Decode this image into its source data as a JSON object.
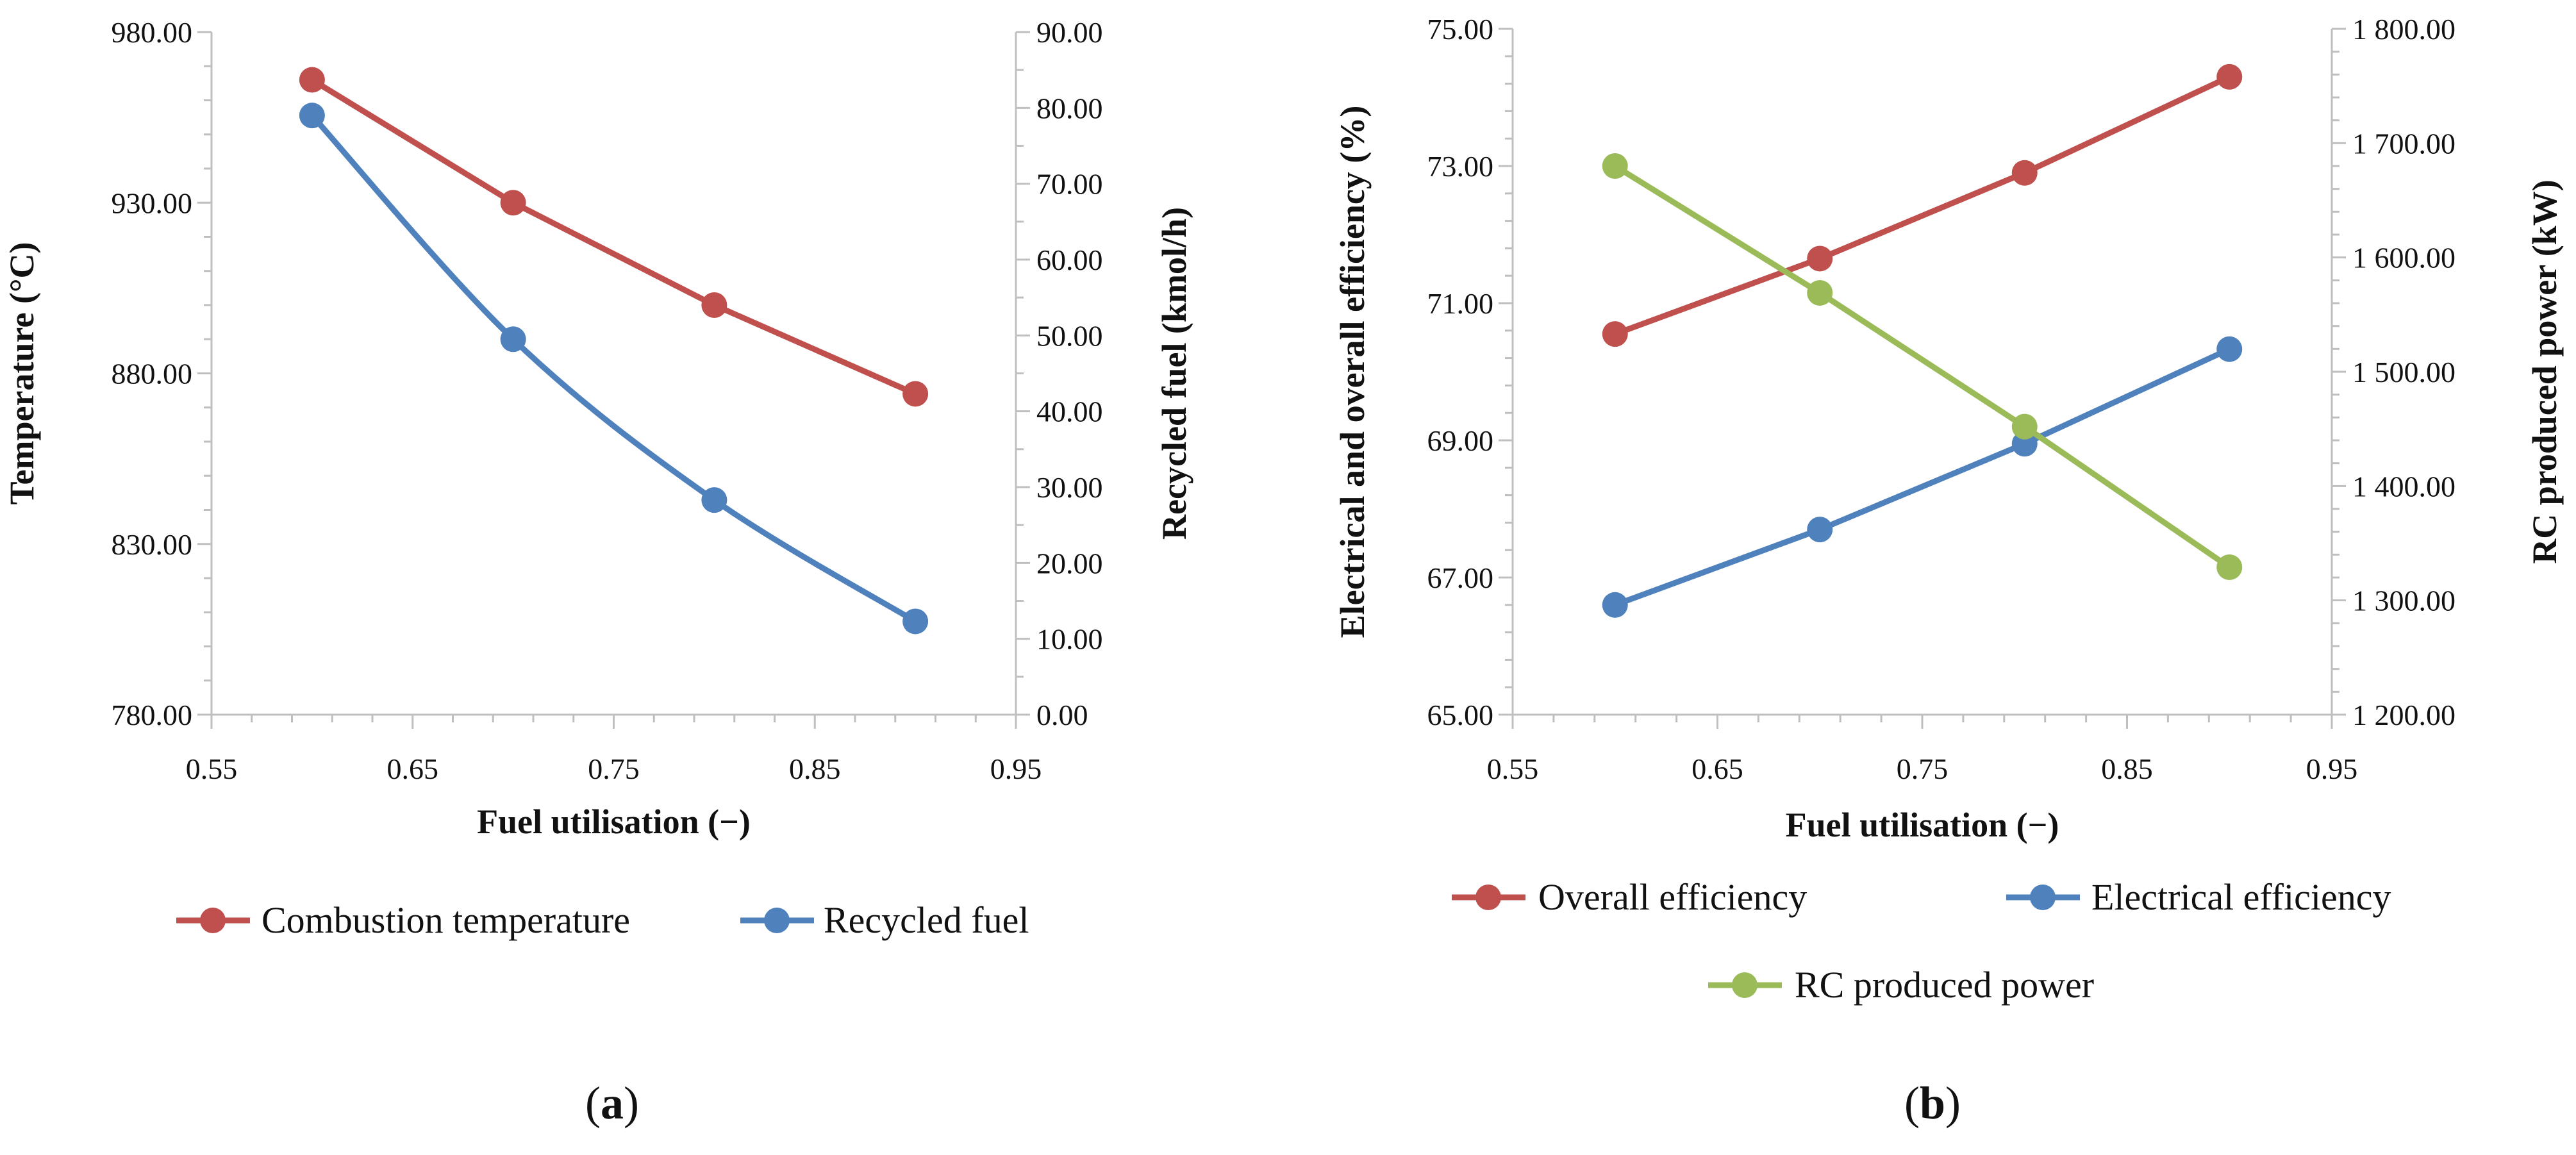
{
  "chart_data": [
    {
      "type": "line",
      "panel_label": "(a)",
      "label_parts": [
        "(",
        "a",
        ")"
      ],
      "xlabel": "Fuel utilisation (−)",
      "ylabel_left": "Temperature (°C)",
      "ylabel_right": "Recycled fuel (kmol/h)",
      "xlim": [
        0.55,
        0.95
      ],
      "x_ticks": [
        "0.55",
        "0.65",
        "0.75",
        "0.85",
        "0.95"
      ],
      "ylim_left": [
        780,
        980
      ],
      "y_ticks_left": [
        "780.00",
        "830.00",
        "880.00",
        "930.00",
        "980.00"
      ],
      "ylim_right": [
        0,
        90
      ],
      "y_ticks_right": [
        "0.00",
        "10.00",
        "20.00",
        "30.00",
        "40.00",
        "50.00",
        "60.00",
        "70.00",
        "80.00",
        "90.00"
      ],
      "legend_position": "bottom",
      "series": [
        {
          "name": "Combustion temperature",
          "axis": "left",
          "color": "#c0504d",
          "smooth": false,
          "x": [
            0.6,
            0.7,
            0.8,
            0.9
          ],
          "values": [
            966,
            930,
            900,
            874
          ]
        },
        {
          "name": "Recycled fuel",
          "axis": "right",
          "color": "#4f81bd",
          "smooth": true,
          "x": [
            0.6,
            0.7,
            0.8,
            0.9
          ],
          "values": [
            79,
            49.5,
            28.3,
            12.3
          ]
        }
      ]
    },
    {
      "type": "line",
      "panel_label": "(b)",
      "label_parts": [
        "(",
        "b",
        ")"
      ],
      "xlabel": "Fuel utilisation (−)",
      "ylabel_left": "Electrical and overall efficiency (%)",
      "ylabel_right": "RC produced power (kW)",
      "xlim": [
        0.55,
        0.95
      ],
      "x_ticks": [
        "0.55",
        "0.65",
        "0.75",
        "0.85",
        "0.95"
      ],
      "ylim_left": [
        65,
        75
      ],
      "y_ticks_left": [
        "65.00",
        "67.00",
        "69.00",
        "71.00",
        "73.00",
        "75.00"
      ],
      "ylim_right": [
        1200,
        1800
      ],
      "y_ticks_right": [
        "1 200.00",
        "1 300.00",
        "1 400.00",
        "1 500.00",
        "1 600.00",
        "1 700.00",
        "1 800.00"
      ],
      "legend_position": "bottom",
      "series": [
        {
          "name": "Overall efficiency",
          "axis": "left",
          "color": "#c0504d",
          "smooth": false,
          "x": [
            0.6,
            0.7,
            0.8,
            0.9
          ],
          "values": [
            70.55,
            71.65,
            72.9,
            74.3
          ]
        },
        {
          "name": "Electrical efficiency",
          "axis": "left",
          "color": "#4f81bd",
          "smooth": false,
          "x": [
            0.6,
            0.7,
            0.8,
            0.9
          ],
          "values": [
            66.6,
            67.7,
            68.95,
            70.33
          ]
        },
        {
          "name": "RC produced power",
          "axis": "right",
          "color": "#9bbb59",
          "smooth": false,
          "x": [
            0.6,
            0.7,
            0.8,
            0.9
          ],
          "values": [
            1680,
            1569,
            1452,
            1329
          ]
        }
      ]
    }
  ]
}
